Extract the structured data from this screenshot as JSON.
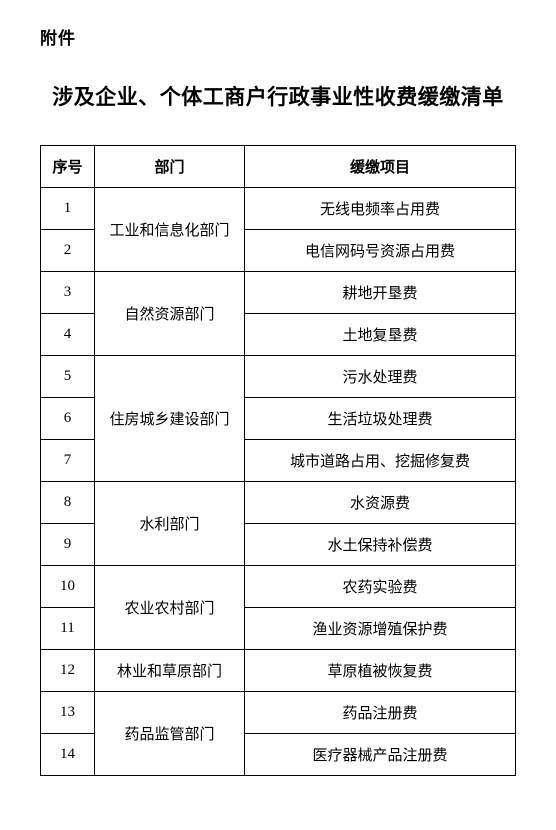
{
  "attachment_label": "附件",
  "title": "涉及企业、个体工商户行政事业性收费缓缴清单",
  "columns": [
    "序号",
    "部门",
    "缓缴项目"
  ],
  "groups": [
    {
      "dept": "工业和信息化部门",
      "rows": [
        {
          "seq": "1",
          "item": "无线电频率占用费"
        },
        {
          "seq": "2",
          "item": "电信网码号资源占用费"
        }
      ]
    },
    {
      "dept": "自然资源部门",
      "rows": [
        {
          "seq": "3",
          "item": "耕地开垦费"
        },
        {
          "seq": "4",
          "item": "土地复垦费"
        }
      ]
    },
    {
      "dept": "住房城乡建设部门",
      "rows": [
        {
          "seq": "5",
          "item": "污水处理费"
        },
        {
          "seq": "6",
          "item": "生活垃圾处理费"
        },
        {
          "seq": "7",
          "item": "城市道路占用、挖掘修复费"
        }
      ]
    },
    {
      "dept": "水利部门",
      "rows": [
        {
          "seq": "8",
          "item": "水资源费"
        },
        {
          "seq": "9",
          "item": "水土保持补偿费"
        }
      ]
    },
    {
      "dept": "农业农村部门",
      "rows": [
        {
          "seq": "10",
          "item": "农药实验费"
        },
        {
          "seq": "11",
          "item": "渔业资源增殖保护费"
        }
      ]
    },
    {
      "dept": "林业和草原部门",
      "rows": [
        {
          "seq": "12",
          "item": "草原植被恢复费"
        }
      ]
    },
    {
      "dept": "药品监管部门",
      "rows": [
        {
          "seq": "13",
          "item": "药品注册费"
        },
        {
          "seq": "14",
          "item": "医疗器械产品注册费"
        }
      ]
    }
  ]
}
